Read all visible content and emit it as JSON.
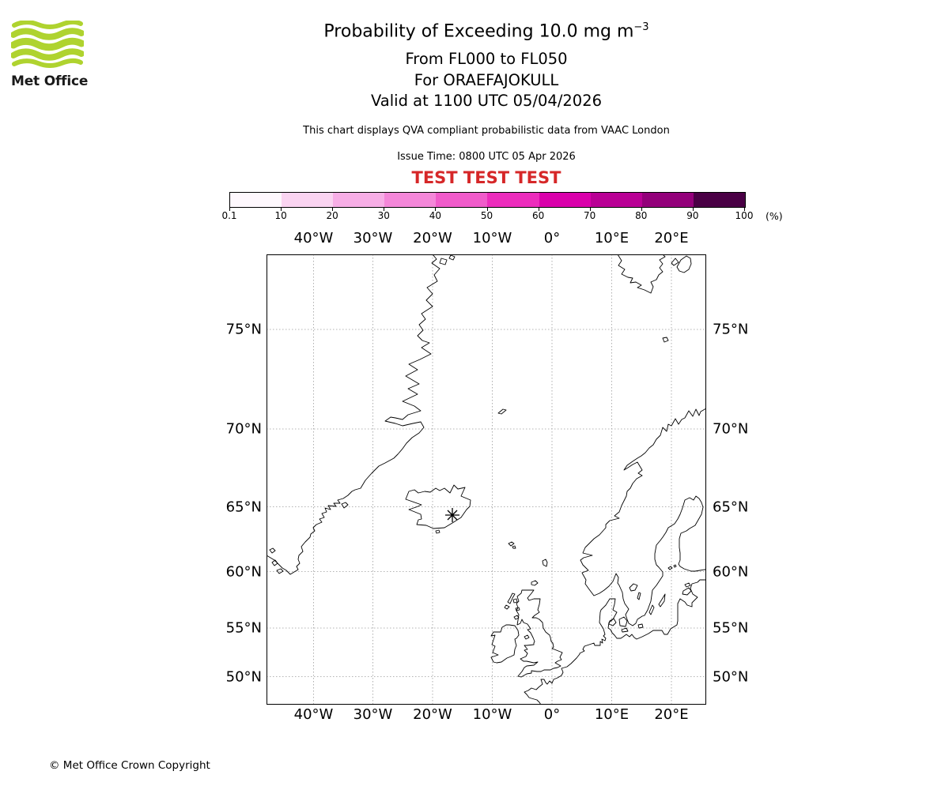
{
  "logo": {
    "brand": "Met Office"
  },
  "header": {
    "title": "Probability of Exceeding 10.0 mg m",
    "title_exponent": "−3",
    "line_fl": "From FL000 to FL050",
    "line_volcano": "For ORAEFAJOKULL",
    "line_valid": "Valid at 1100 UTC 05/04/2026",
    "description": "This chart displays QVA compliant probabilistic data from VAAC London",
    "issue_time": "Issue Time: 0800 UTC 05 Apr 2026",
    "test_banner": "TEST TEST TEST"
  },
  "colorbar": {
    "unit_label": "(%)",
    "tick_labels": [
      "0.1",
      "10",
      "20",
      "30",
      "40",
      "50",
      "60",
      "70",
      "80",
      "90",
      "100"
    ],
    "segment_colors": [
      "#fef8fd",
      "#fad4f1",
      "#f7aee6",
      "#f487d9",
      "#f05bca",
      "#ec2cbc",
      "#da00ab",
      "#b90095",
      "#93007a",
      "#4a0045"
    ]
  },
  "map": {
    "lon_labels": [
      "40°W",
      "30°W",
      "20°W",
      "10°W",
      "0°",
      "10°E",
      "20°E"
    ],
    "lat_labels": [
      "75°N",
      "70°N",
      "65°N",
      "60°N",
      "55°N",
      "50°N"
    ]
  },
  "chart_data": {
    "type": "map",
    "colorbar_percent_ticks": [
      0.1,
      10,
      20,
      30,
      40,
      50,
      60,
      70,
      80,
      90,
      100
    ],
    "lon_ticks_deg_east": [
      -40,
      -30,
      -20,
      -10,
      0,
      10,
      20
    ],
    "lat_ticks_deg_north": [
      75,
      70,
      65,
      60,
      55,
      50
    ]
  },
  "footer": {
    "copyright": "© Met Office Crown Copyright"
  },
  "colors": {
    "test_red": "#d62728",
    "coastline": "#000000",
    "grid": "#9b9b9b",
    "logo_green": "#afd32f"
  }
}
